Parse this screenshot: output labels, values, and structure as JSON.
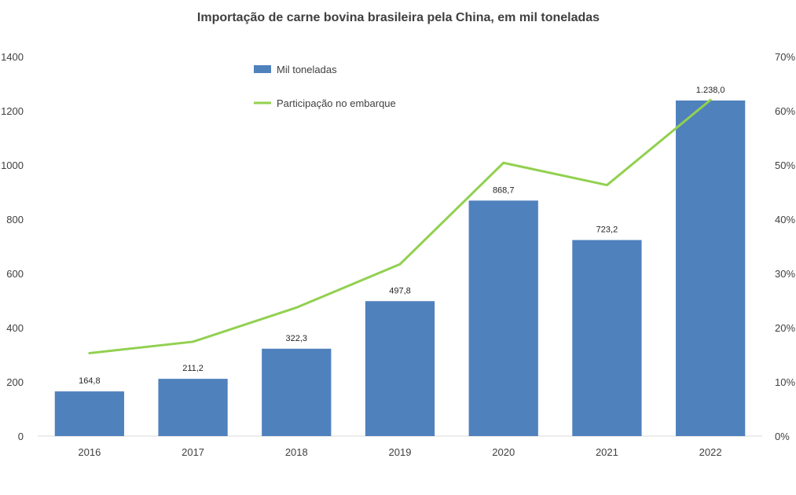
{
  "chart_data": {
    "type": "bar",
    "title": "Importação de carne bovina brasileira pela China, em mil toneladas",
    "categories": [
      "2016",
      "2017",
      "2018",
      "2019",
      "2020",
      "2021",
      "2022"
    ],
    "series": [
      {
        "name": "Mil toneladas",
        "type": "bar",
        "axis": "left",
        "values": [
          164.8,
          211.2,
          322.3,
          497.8,
          868.7,
          723.2,
          1238.0
        ],
        "labels": [
          "164,8",
          "211,2",
          "322,3",
          "497,8",
          "868,7",
          "723,2",
          "1.238,0"
        ],
        "color": "#4f81bd"
      },
      {
        "name": "Participação no embarque",
        "type": "line",
        "axis": "right",
        "values": [
          15.3,
          17.4,
          23.7,
          31.7,
          50.4,
          46.3,
          62.0
        ],
        "color": "#92d050"
      }
    ],
    "y_left": {
      "min": 0,
      "max": 1400,
      "ticks": [
        0,
        200,
        400,
        600,
        800,
        1000,
        1200,
        1400
      ],
      "tick_labels": [
        "0",
        "200",
        "400",
        "600",
        "800",
        "1000",
        "1200",
        "1400"
      ]
    },
    "y_right": {
      "min": 0,
      "max": 70,
      "ticks": [
        0,
        10,
        20,
        30,
        40,
        50,
        60,
        70
      ],
      "tick_labels": [
        "0%",
        "10%",
        "20%",
        "30%",
        "40%",
        "50%",
        "60%",
        "70%"
      ]
    },
    "grid": false,
    "legend_position": "top-left"
  }
}
